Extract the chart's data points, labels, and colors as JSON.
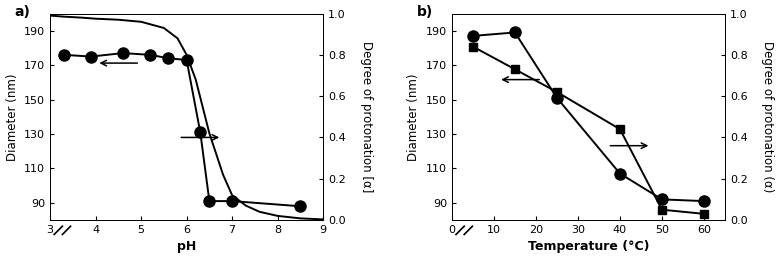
{
  "panel_a": {
    "label": "a)",
    "xlabel": "pH",
    "ylabel_left": "Diameter (nm)",
    "ylabel_right": "Degree of protonation [α]",
    "xlim": [
      3,
      9
    ],
    "ylim_left": [
      80,
      200
    ],
    "ylim_right": [
      0,
      1
    ],
    "yticks_left": [
      90,
      110,
      130,
      150,
      170,
      190
    ],
    "yticks_right": [
      0,
      0.2,
      0.4,
      0.6,
      0.8,
      1.0
    ],
    "xticks": [
      3,
      4,
      5,
      6,
      7,
      8,
      9
    ],
    "diameter_x": [
      3.3,
      3.9,
      4.6,
      5.2,
      5.6,
      6.0,
      6.3,
      6.5,
      7.0,
      8.5
    ],
    "diameter_y": [
      176,
      175,
      177,
      176,
      174,
      173,
      131,
      91,
      91,
      88
    ],
    "sigmoid_x": [
      3.0,
      3.3,
      3.7,
      4.0,
      4.5,
      5.0,
      5.5,
      5.8,
      6.0,
      6.2,
      6.5,
      6.8,
      7.0,
      7.3,
      7.6,
      8.0,
      8.5,
      9.0
    ],
    "sigmoid_y": [
      0.99,
      0.985,
      0.98,
      0.975,
      0.97,
      0.96,
      0.93,
      0.88,
      0.8,
      0.68,
      0.42,
      0.22,
      0.12,
      0.07,
      0.04,
      0.02,
      0.008,
      0.003
    ]
  },
  "panel_b": {
    "label": "b)",
    "xlabel": "Temperature (°C)",
    "ylabel_left": "Diameter (nm)",
    "ylabel_right": "Degree of protonation (α)",
    "xlim": [
      0,
      65
    ],
    "ylim_left": [
      80,
      200
    ],
    "ylim_right": [
      0,
      1
    ],
    "yticks_left": [
      90,
      110,
      130,
      150,
      170,
      190
    ],
    "yticks_right": [
      0,
      0.2,
      0.4,
      0.6,
      0.8,
      1.0
    ],
    "xticks": [
      0,
      10,
      20,
      30,
      40,
      50,
      60
    ],
    "diameter_x": [
      5,
      15,
      25,
      40,
      50,
      60
    ],
    "diameter_y": [
      187,
      189,
      151,
      107,
      92,
      91
    ],
    "protonation_x": [
      5,
      15,
      25,
      40,
      50,
      60
    ],
    "protonation_y": [
      0.84,
      0.73,
      0.62,
      0.44,
      0.05,
      0.03
    ]
  },
  "markersize_circle": 8,
  "markersize_square": 6,
  "linewidth": 1.4,
  "color": "black",
  "background": "white",
  "tick_labelsize": 8,
  "ylabel_fontsize": 8.5,
  "xlabel_fontsize": 9,
  "label_fontsize": 10
}
